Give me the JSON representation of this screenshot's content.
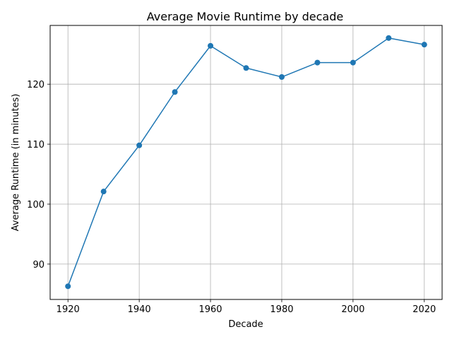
{
  "chart_data": {
    "type": "line",
    "title": "Average Movie Runtime by decade",
    "xlabel": "Decade",
    "ylabel": "Average Runtime (in minutes)",
    "x": [
      1920,
      1930,
      1940,
      1950,
      1960,
      1970,
      1980,
      1990,
      2000,
      2010,
      2020
    ],
    "series": [
      {
        "values": [
          86.3,
          102.1,
          109.8,
          118.7,
          126.4,
          122.7,
          121.2,
          123.6,
          123.6,
          127.7,
          126.6
        ]
      }
    ],
    "xlim": [
      1915,
      2025
    ],
    "ylim": [
      84.1,
      129.8
    ],
    "xticks": [
      1920,
      1940,
      1960,
      1980,
      2000,
      2020
    ],
    "yticks": [
      90,
      100,
      110,
      120
    ],
    "grid": true,
    "colors": {
      "line": "#1f77b4",
      "marker": "#1f77b4",
      "grid": "#b0b0b0",
      "axes": "#000000"
    }
  }
}
